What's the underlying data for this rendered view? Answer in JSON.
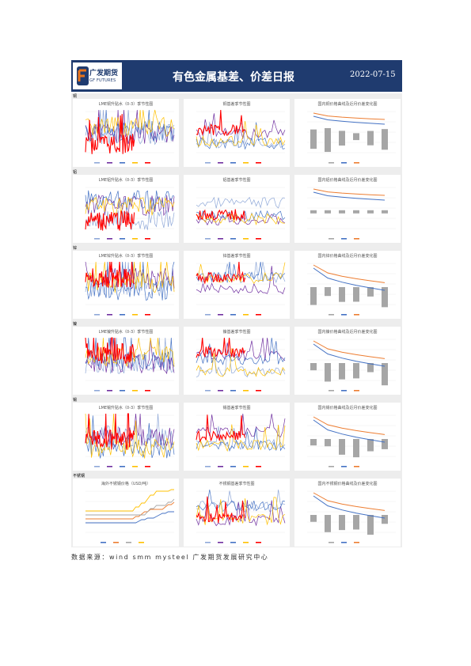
{
  "header": {
    "logo_cn": "广发期货",
    "logo_en": "GF FUTURES",
    "title": "有色金属基差、价差日报",
    "date": "2022-07-15"
  },
  "rows": [
    {
      "label": "铜",
      "titles": [
        "LME铜升贴水（0-3）季节性图",
        "铜基差季节性图",
        "国内铜价格曲线及近月价差变化图"
      ]
    },
    {
      "label": "铝",
      "titles": [
        "LME铝升贴水（0-3）季节性图",
        "铝基差季节性图",
        "国内铝价格曲线及近月价差变化图"
      ]
    },
    {
      "label": "锌",
      "titles": [
        "LME锌升贴水（0-3）季节性图",
        "锌基差季节性图",
        "国内锌价格曲线及近月价差变化图"
      ]
    },
    {
      "label": "镍",
      "titles": [
        "LME镍升贴水（0-3）季节性图",
        "镍基差季节性图",
        "国内镍价格曲线及近月价差变化图"
      ]
    },
    {
      "label": "锡",
      "titles": [
        "LME锡升贴水（0-3）季节性图",
        "锡基差季节性图",
        "国内锡价格曲线及近月价差变化图"
      ]
    },
    {
      "label": "不锈钢",
      "titles": [
        "海外不锈钢价格（USD/吨）",
        "不锈钢基差季节性图",
        "国内不锈钢价格曲线及价差变化图"
      ]
    }
  ],
  "colors": {
    "header_bg": "#1f3b6f",
    "logo_orange": "#e8731a",
    "s2018": "#8fa8d8",
    "s2019": "#7030a0",
    "s2020": "#4472c4",
    "s2021": "#ffc000",
    "s2022": "#ff0000",
    "bar": "#a6a6a6",
    "curve1": "#4472c4",
    "curve2": "#ed7d31"
  },
  "footer": {
    "source": "数据来源：wind  smm  mysteel  广发期货发展研究中心"
  }
}
